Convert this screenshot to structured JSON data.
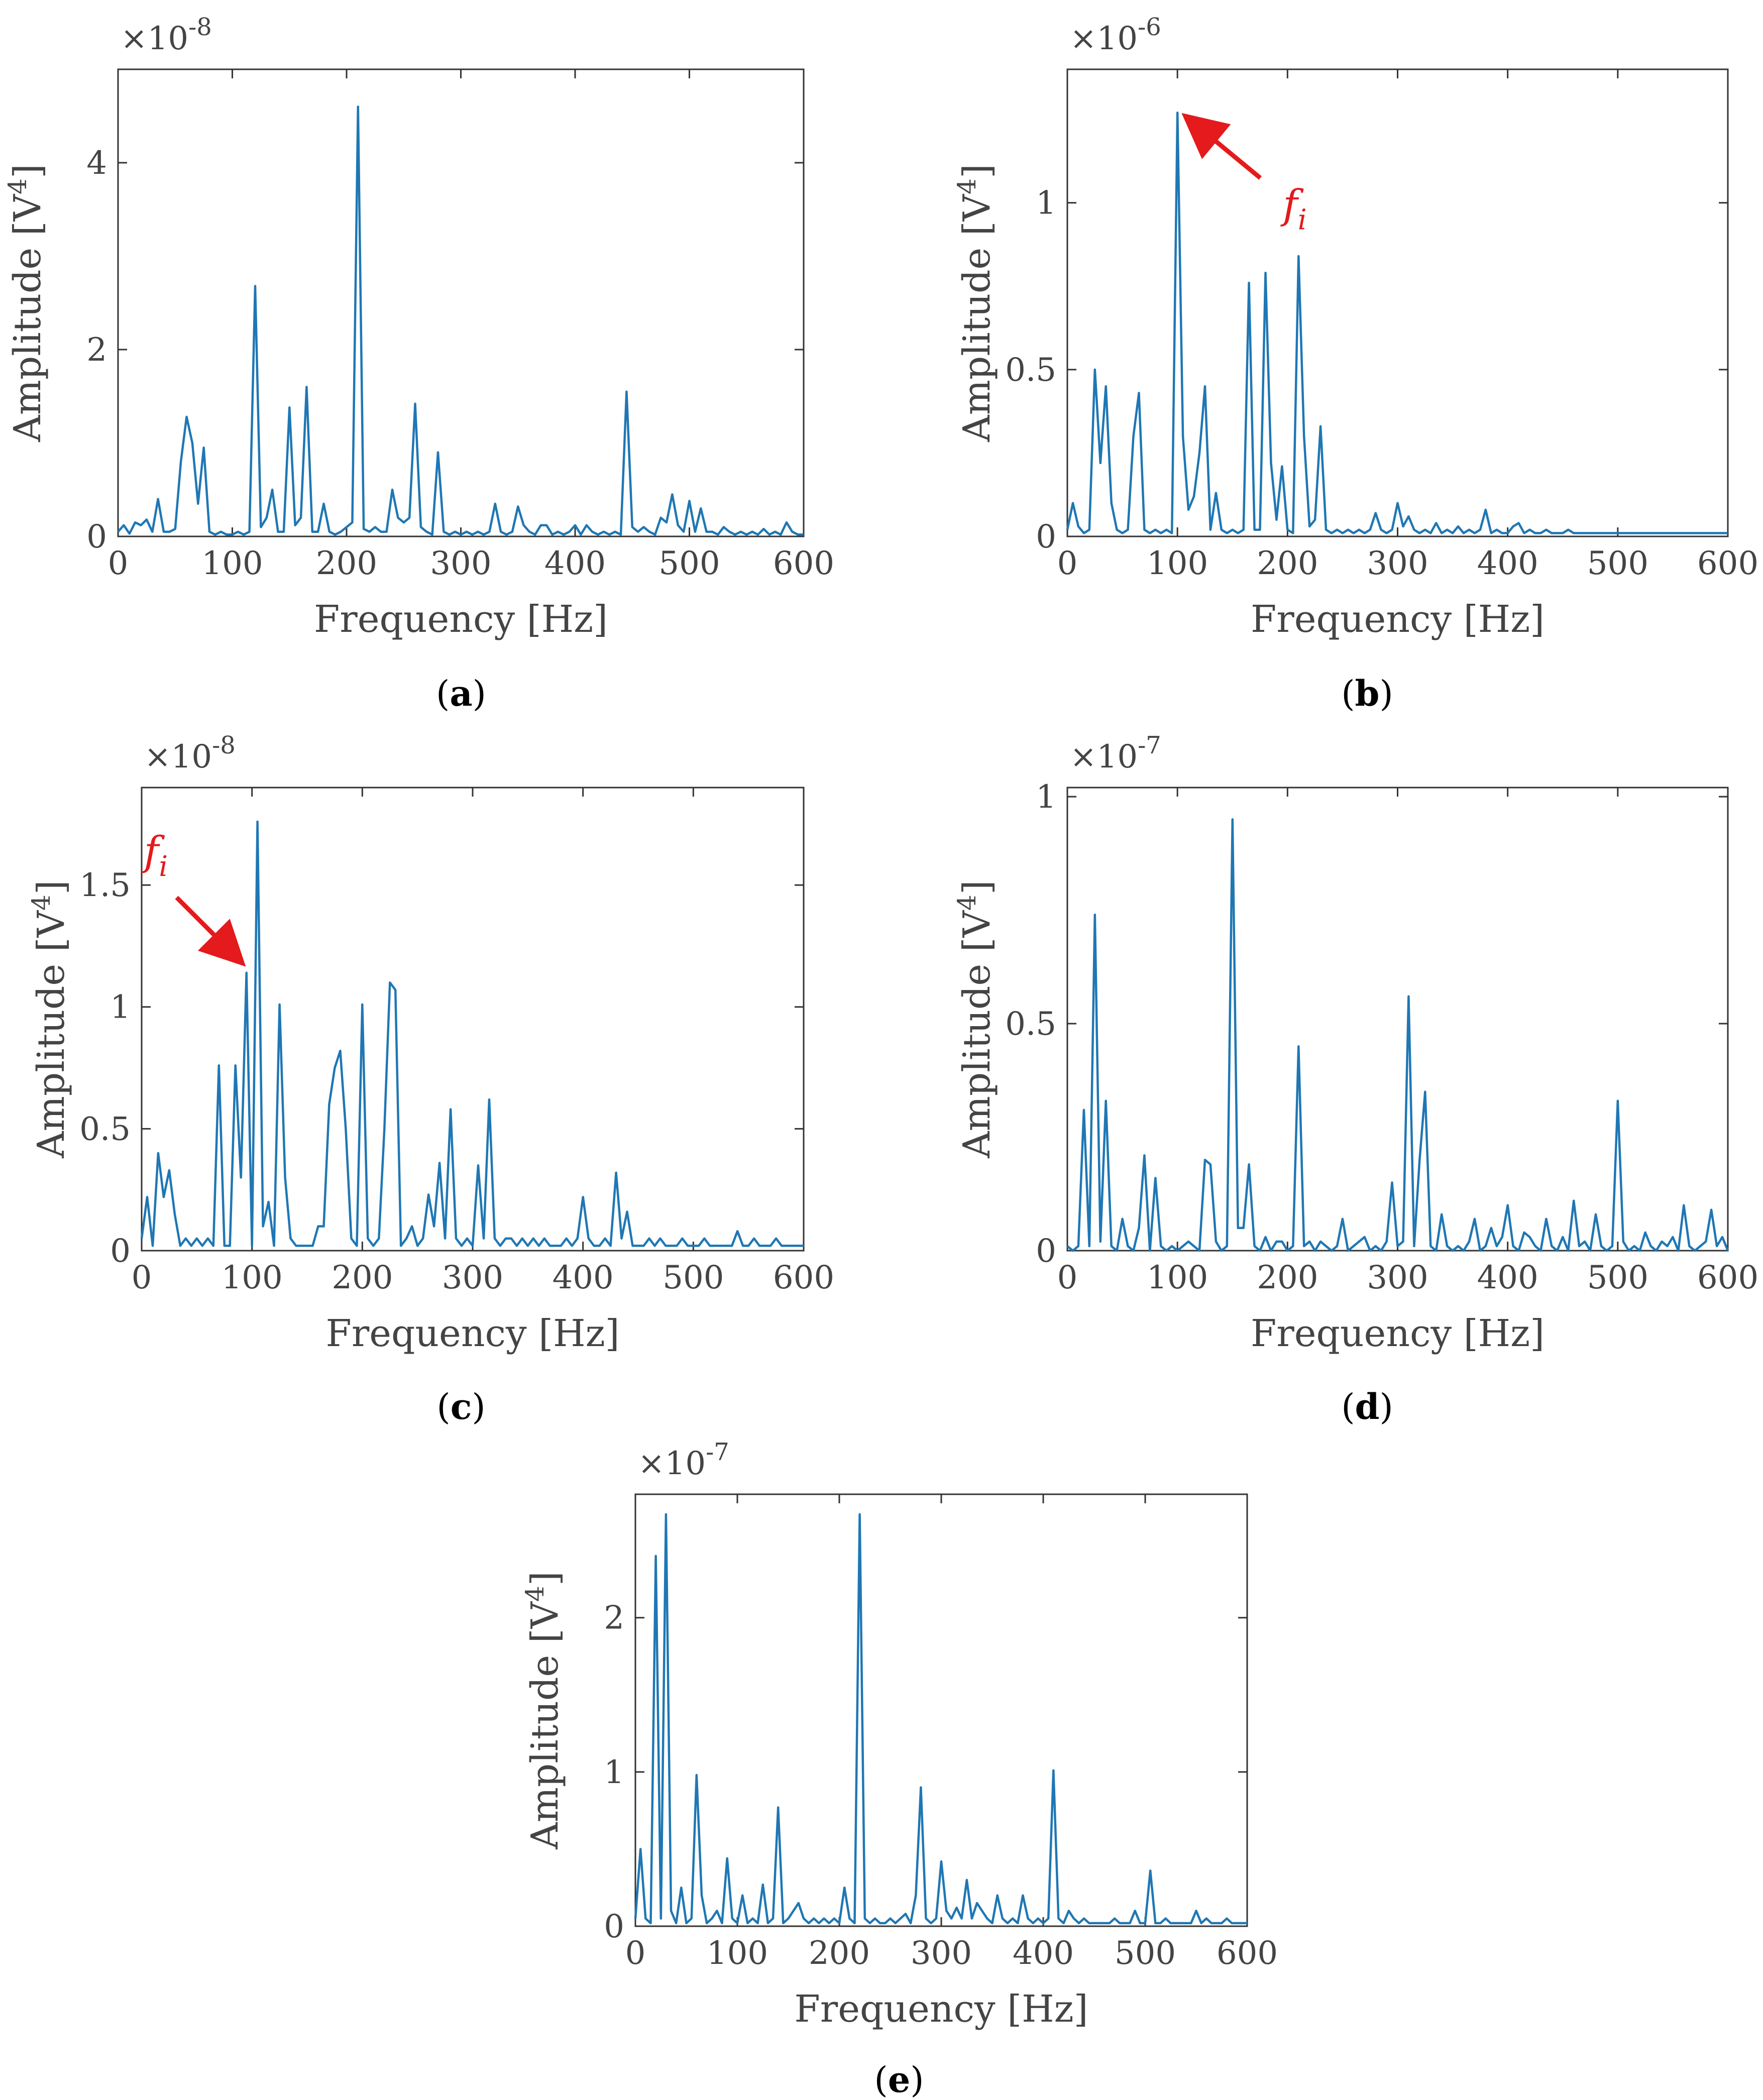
{
  "figure": {
    "colors": {
      "line": "#1f77b4",
      "axis": "#333333",
      "text": "#444444",
      "annotation": "#e41a1c"
    }
  },
  "chart_data": [
    {
      "type": "line",
      "panel": "a",
      "caption": "(a)",
      "xlabel": "Frequency [Hz]",
      "ylabel": "Amplitude [V4]",
      "exponent": "×10-8",
      "xlim": [
        0,
        600
      ],
      "ylim": [
        0,
        5.0
      ],
      "xticks": [
        "0",
        "100",
        "200",
        "300",
        "400",
        "500",
        "600"
      ],
      "yticks": [
        "0",
        "2",
        "4"
      ],
      "ytick_values": [
        0,
        2,
        4
      ],
      "x": [
        0,
        5,
        10,
        15,
        20,
        25,
        30,
        35,
        40,
        45,
        50,
        55,
        60,
        65,
        70,
        75,
        80,
        85,
        90,
        95,
        100,
        105,
        110,
        115,
        120,
        125,
        130,
        135,
        140,
        145,
        150,
        155,
        160,
        165,
        170,
        175,
        180,
        185,
        190,
        195,
        200,
        205,
        210,
        215,
        220,
        225,
        230,
        235,
        240,
        245,
        250,
        255,
        260,
        265,
        270,
        275,
        280,
        285,
        290,
        295,
        300,
        305,
        310,
        315,
        320,
        325,
        330,
        335,
        340,
        345,
        350,
        355,
        360,
        365,
        370,
        375,
        380,
        385,
        390,
        395,
        400,
        405,
        410,
        415,
        420,
        425,
        430,
        435,
        440,
        445,
        450,
        455,
        460,
        465,
        470,
        475,
        480,
        485,
        490,
        495,
        500,
        505,
        510,
        515,
        520,
        525,
        530,
        535,
        540,
        545,
        550,
        555,
        560,
        565,
        570,
        575,
        580,
        585,
        590,
        595,
        600
      ],
      "y": [
        0.05,
        0.12,
        0.03,
        0.15,
        0.12,
        0.18,
        0.05,
        0.4,
        0.05,
        0.05,
        0.08,
        0.8,
        1.28,
        1.0,
        0.35,
        0.95,
        0.05,
        0.02,
        0.05,
        0.02,
        0.02,
        0.05,
        0.02,
        0.05,
        2.68,
        0.1,
        0.2,
        0.5,
        0.05,
        0.05,
        1.38,
        0.12,
        0.2,
        1.6,
        0.05,
        0.05,
        0.35,
        0.05,
        0.02,
        0.05,
        0.1,
        0.15,
        4.6,
        0.08,
        0.05,
        0.1,
        0.05,
        0.05,
        0.5,
        0.2,
        0.15,
        0.2,
        1.42,
        0.1,
        0.05,
        0.02,
        0.9,
        0.05,
        0.02,
        0.05,
        0.02,
        0.05,
        0.02,
        0.05,
        0.02,
        0.05,
        0.35,
        0.05,
        0.02,
        0.05,
        0.32,
        0.12,
        0.05,
        0.02,
        0.12,
        0.12,
        0.02,
        0.05,
        0.02,
        0.05,
        0.12,
        0.02,
        0.12,
        0.05,
        0.02,
        0.05,
        0.02,
        0.05,
        0.02,
        1.55,
        0.1,
        0.05,
        0.1,
        0.05,
        0.02,
        0.2,
        0.15,
        0.45,
        0.12,
        0.05,
        0.38,
        0.05,
        0.3,
        0.05,
        0.05,
        0.02,
        0.1,
        0.05,
        0.02,
        0.05,
        0.02,
        0.05,
        0.02,
        0.08,
        0.02,
        0.05,
        0.02,
        0.15,
        0.05,
        0.02,
        0.02
      ]
    },
    {
      "type": "line",
      "panel": "b",
      "caption": "(b)",
      "xlabel": "Frequency [Hz]",
      "ylabel": "Amplitude [V4]",
      "exponent": "×10-6",
      "xlim": [
        0,
        600
      ],
      "ylim": [
        0,
        1.4
      ],
      "xticks": [
        "0",
        "100",
        "200",
        "300",
        "400",
        "500",
        "600"
      ],
      "yticks": [
        "0",
        "0.5",
        "1"
      ],
      "ytick_values": [
        0,
        0.5,
        1
      ],
      "annotation": {
        "label": "fi",
        "x": 100,
        "y": 1.27
      },
      "x": [
        0,
        5,
        10,
        15,
        20,
        25,
        30,
        35,
        40,
        45,
        50,
        55,
        60,
        65,
        70,
        75,
        80,
        85,
        90,
        95,
        100,
        105,
        110,
        115,
        120,
        125,
        130,
        135,
        140,
        145,
        150,
        155,
        160,
        165,
        170,
        175,
        180,
        185,
        190,
        195,
        200,
        205,
        210,
        215,
        220,
        225,
        230,
        235,
        240,
        245,
        250,
        255,
        260,
        265,
        270,
        275,
        280,
        285,
        290,
        295,
        300,
        305,
        310,
        315,
        320,
        325,
        330,
        335,
        340,
        345,
        350,
        355,
        360,
        365,
        370,
        375,
        380,
        385,
        390,
        395,
        400,
        405,
        410,
        415,
        420,
        425,
        430,
        435,
        440,
        445,
        450,
        455,
        460,
        465,
        470,
        475,
        480,
        485,
        490,
        495,
        500,
        505,
        510,
        515,
        520,
        525,
        530,
        535,
        540,
        545,
        550,
        555,
        560,
        565,
        570,
        575,
        580,
        585,
        590,
        595,
        600
      ],
      "y": [
        0.02,
        0.1,
        0.03,
        0.01,
        0.02,
        0.5,
        0.22,
        0.45,
        0.1,
        0.02,
        0.01,
        0.02,
        0.3,
        0.43,
        0.02,
        0.01,
        0.02,
        0.01,
        0.02,
        0.01,
        1.27,
        0.3,
        0.08,
        0.12,
        0.25,
        0.45,
        0.02,
        0.13,
        0.02,
        0.01,
        0.02,
        0.01,
        0.02,
        0.76,
        0.02,
        0.02,
        0.79,
        0.22,
        0.05,
        0.21,
        0.02,
        0.01,
        0.84,
        0.3,
        0.03,
        0.05,
        0.33,
        0.02,
        0.01,
        0.02,
        0.01,
        0.02,
        0.01,
        0.02,
        0.01,
        0.02,
        0.07,
        0.02,
        0.01,
        0.02,
        0.1,
        0.03,
        0.06,
        0.02,
        0.01,
        0.02,
        0.01,
        0.04,
        0.01,
        0.02,
        0.01,
        0.03,
        0.01,
        0.02,
        0.01,
        0.02,
        0.08,
        0.01,
        0.02,
        0.01,
        0.01,
        0.03,
        0.04,
        0.01,
        0.02,
        0.01,
        0.01,
        0.02,
        0.01,
        0.01,
        0.01,
        0.02,
        0.01,
        0.01,
        0.01,
        0.01,
        0.01,
        0.01,
        0.01,
        0.01,
        0.01,
        0.01,
        0.01,
        0.01,
        0.01,
        0.01,
        0.01,
        0.01,
        0.01,
        0.01,
        0.01,
        0.01,
        0.01,
        0.01,
        0.01,
        0.01,
        0.01,
        0.01,
        0.01,
        0.01,
        0.01
      ]
    },
    {
      "type": "line",
      "panel": "c",
      "caption": "(c)",
      "xlabel": "Frequency [Hz]",
      "ylabel": "Amplitude [V4]",
      "exponent": "×10-8",
      "xlim": [
        0,
        600
      ],
      "ylim": [
        0,
        1.9
      ],
      "xticks": [
        "0",
        "100",
        "200",
        "300",
        "400",
        "500",
        "600"
      ],
      "yticks": [
        "0",
        "0.5",
        "1",
        "1.5"
      ],
      "ytick_values": [
        0,
        0.5,
        1,
        1.5
      ],
      "annotation": {
        "label": "fi",
        "x": 100,
        "y": 1.14
      },
      "x": [
        0,
        5,
        10,
        15,
        20,
        25,
        30,
        35,
        40,
        45,
        50,
        55,
        60,
        65,
        70,
        75,
        80,
        85,
        90,
        95,
        100,
        105,
        110,
        115,
        120,
        125,
        130,
        135,
        140,
        145,
        150,
        155,
        160,
        165,
        170,
        175,
        180,
        185,
        190,
        195,
        200,
        205,
        210,
        215,
        220,
        225,
        230,
        235,
        240,
        245,
        250,
        255,
        260,
        265,
        270,
        275,
        280,
        285,
        290,
        295,
        300,
        305,
        310,
        315,
        320,
        325,
        330,
        335,
        340,
        345,
        350,
        355,
        360,
        365,
        370,
        375,
        380,
        385,
        390,
        395,
        400,
        405,
        410,
        415,
        420,
        425,
        430,
        435,
        440,
        445,
        450,
        455,
        460,
        465,
        470,
        475,
        480,
        485,
        490,
        495,
        500,
        505,
        510,
        515,
        520,
        525,
        530,
        535,
        540,
        545,
        550,
        555,
        560,
        565,
        570,
        575,
        580,
        585,
        590,
        595,
        600
      ],
      "y": [
        0.05,
        0.22,
        0.02,
        0.4,
        0.22,
        0.33,
        0.15,
        0.02,
        0.05,
        0.02,
        0.05,
        0.02,
        0.05,
        0.02,
        0.76,
        0.02,
        0.02,
        0.76,
        0.3,
        1.14,
        0.02,
        1.76,
        0.1,
        0.2,
        0.02,
        1.01,
        0.3,
        0.05,
        0.02,
        0.02,
        0.02,
        0.02,
        0.1,
        0.1,
        0.6,
        0.75,
        0.82,
        0.5,
        0.05,
        0.02,
        1.01,
        0.05,
        0.02,
        0.05,
        0.5,
        1.1,
        1.07,
        0.02,
        0.05,
        0.1,
        0.02,
        0.05,
        0.23,
        0.1,
        0.36,
        0.05,
        0.58,
        0.05,
        0.02,
        0.05,
        0.02,
        0.35,
        0.05,
        0.62,
        0.05,
        0.02,
        0.05,
        0.05,
        0.02,
        0.05,
        0.02,
        0.05,
        0.02,
        0.05,
        0.02,
        0.02,
        0.02,
        0.05,
        0.02,
        0.05,
        0.22,
        0.05,
        0.02,
        0.02,
        0.05,
        0.02,
        0.32,
        0.05,
        0.16,
        0.02,
        0.02,
        0.02,
        0.05,
        0.02,
        0.05,
        0.02,
        0.02,
        0.02,
        0.05,
        0.02,
        0.02,
        0.02,
        0.05,
        0.02,
        0.02,
        0.02,
        0.02,
        0.02,
        0.08,
        0.02,
        0.02,
        0.05,
        0.02,
        0.02,
        0.02,
        0.05,
        0.02,
        0.02,
        0.02,
        0.02,
        0.02
      ]
    },
    {
      "type": "line",
      "panel": "d",
      "caption": "(d)",
      "xlabel": "Frequency [Hz]",
      "ylabel": "Amplitude [V4]",
      "exponent": "×10-7",
      "xlim": [
        0,
        600
      ],
      "ylim": [
        0,
        1.02
      ],
      "xticks": [
        "0",
        "100",
        "200",
        "300",
        "400",
        "500",
        "600"
      ],
      "yticks": [
        "0",
        "0.5",
        "1"
      ],
      "ytick_values": [
        0,
        0.5,
        1
      ],
      "x": [
        0,
        5,
        10,
        15,
        20,
        25,
        30,
        35,
        40,
        45,
        50,
        55,
        60,
        65,
        70,
        75,
        80,
        85,
        90,
        95,
        100,
        105,
        110,
        115,
        120,
        125,
        130,
        135,
        140,
        145,
        150,
        155,
        160,
        165,
        170,
        175,
        180,
        185,
        190,
        195,
        200,
        205,
        210,
        215,
        220,
        225,
        230,
        235,
        240,
        245,
        250,
        255,
        260,
        265,
        270,
        275,
        280,
        285,
        290,
        295,
        300,
        305,
        310,
        315,
        320,
        325,
        330,
        335,
        340,
        345,
        350,
        355,
        360,
        365,
        370,
        375,
        380,
        385,
        390,
        395,
        400,
        405,
        410,
        415,
        420,
        425,
        430,
        435,
        440,
        445,
        450,
        455,
        460,
        465,
        470,
        475,
        480,
        485,
        490,
        495,
        500,
        505,
        510,
        515,
        520,
        525,
        530,
        535,
        540,
        545,
        550,
        555,
        560,
        565,
        570,
        575,
        580,
        585,
        590,
        595,
        600
      ],
      "y": [
        0.01,
        0.0,
        0.01,
        0.31,
        0.01,
        0.74,
        0.02,
        0.33,
        0.01,
        0.0,
        0.07,
        0.01,
        0.0,
        0.05,
        0.21,
        0.0,
        0.16,
        0.01,
        0.0,
        0.01,
        0.0,
        0.01,
        0.02,
        0.01,
        0.0,
        0.2,
        0.19,
        0.02,
        0.0,
        0.01,
        0.95,
        0.05,
        0.05,
        0.19,
        0.01,
        0.0,
        0.03,
        0.0,
        0.02,
        0.02,
        0.0,
        0.01,
        0.45,
        0.01,
        0.02,
        0.0,
        0.02,
        0.01,
        0.0,
        0.01,
        0.07,
        0.0,
        0.01,
        0.02,
        0.03,
        0.0,
        0.01,
        0.0,
        0.02,
        0.15,
        0.01,
        0.02,
        0.56,
        0.01,
        0.2,
        0.35,
        0.01,
        0.0,
        0.08,
        0.01,
        0.0,
        0.01,
        0.0,
        0.02,
        0.07,
        0.0,
        0.01,
        0.05,
        0.01,
        0.03,
        0.1,
        0.01,
        0.0,
        0.04,
        0.03,
        0.01,
        0.0,
        0.07,
        0.01,
        0.0,
        0.03,
        0.0,
        0.11,
        0.01,
        0.02,
        0.0,
        0.08,
        0.01,
        0.0,
        0.01,
        0.33,
        0.02,
        0.0,
        0.01,
        0.0,
        0.04,
        0.01,
        0.0,
        0.02,
        0.01,
        0.03,
        0.0,
        0.1,
        0.01,
        0.0,
        0.01,
        0.02,
        0.09,
        0.01,
        0.03,
        0.0
      ]
    },
    {
      "type": "line",
      "panel": "e",
      "caption": "(e)",
      "xlabel": "Frequency [Hz]",
      "ylabel": "Amplitude [V4]",
      "exponent": "×10-7",
      "xlim": [
        0,
        600
      ],
      "ylim": [
        0,
        2.8
      ],
      "xticks": [
        "0",
        "100",
        "200",
        "300",
        "400",
        "500",
        "600"
      ],
      "yticks": [
        "0",
        "1",
        "2"
      ],
      "ytick_values": [
        0,
        1,
        2
      ],
      "x": [
        0,
        5,
        10,
        15,
        20,
        25,
        30,
        35,
        40,
        45,
        50,
        55,
        60,
        65,
        70,
        75,
        80,
        85,
        90,
        95,
        100,
        105,
        110,
        115,
        120,
        125,
        130,
        135,
        140,
        145,
        150,
        155,
        160,
        165,
        170,
        175,
        180,
        185,
        190,
        195,
        200,
        205,
        210,
        215,
        220,
        225,
        230,
        235,
        240,
        245,
        250,
        255,
        260,
        265,
        270,
        275,
        280,
        285,
        290,
        295,
        300,
        305,
        310,
        315,
        320,
        325,
        330,
        335,
        340,
        345,
        350,
        355,
        360,
        365,
        370,
        375,
        380,
        385,
        390,
        395,
        400,
        405,
        410,
        415,
        420,
        425,
        430,
        435,
        440,
        445,
        450,
        455,
        460,
        465,
        470,
        475,
        480,
        485,
        490,
        495,
        500,
        505,
        510,
        515,
        520,
        525,
        530,
        535,
        540,
        545,
        550,
        555,
        560,
        565,
        570,
        575,
        580,
        585,
        590,
        595,
        600
      ],
      "y": [
        0.05,
        0.5,
        0.05,
        0.02,
        2.4,
        0.05,
        2.67,
        0.1,
        0.02,
        0.25,
        0.02,
        0.05,
        0.98,
        0.2,
        0.02,
        0.05,
        0.1,
        0.02,
        0.44,
        0.05,
        0.02,
        0.2,
        0.02,
        0.05,
        0.02,
        0.27,
        0.02,
        0.05,
        0.77,
        0.02,
        0.05,
        0.1,
        0.15,
        0.05,
        0.02,
        0.05,
        0.02,
        0.05,
        0.02,
        0.05,
        0.02,
        0.25,
        0.05,
        0.02,
        2.67,
        0.05,
        0.02,
        0.05,
        0.02,
        0.02,
        0.05,
        0.02,
        0.05,
        0.08,
        0.02,
        0.2,
        0.9,
        0.05,
        0.02,
        0.05,
        0.42,
        0.1,
        0.05,
        0.12,
        0.05,
        0.3,
        0.05,
        0.15,
        0.1,
        0.05,
        0.02,
        0.2,
        0.05,
        0.02,
        0.05,
        0.02,
        0.2,
        0.05,
        0.02,
        0.05,
        0.02,
        0.05,
        1.01,
        0.05,
        0.02,
        0.1,
        0.05,
        0.02,
        0.05,
        0.02,
        0.02,
        0.02,
        0.02,
        0.02,
        0.05,
        0.02,
        0.02,
        0.02,
        0.1,
        0.02,
        0.02,
        0.36,
        0.02,
        0.02,
        0.05,
        0.02,
        0.02,
        0.02,
        0.02,
        0.02,
        0.1,
        0.02,
        0.05,
        0.02,
        0.02,
        0.02,
        0.05,
        0.02,
        0.02,
        0.02,
        0.02
      ]
    }
  ]
}
